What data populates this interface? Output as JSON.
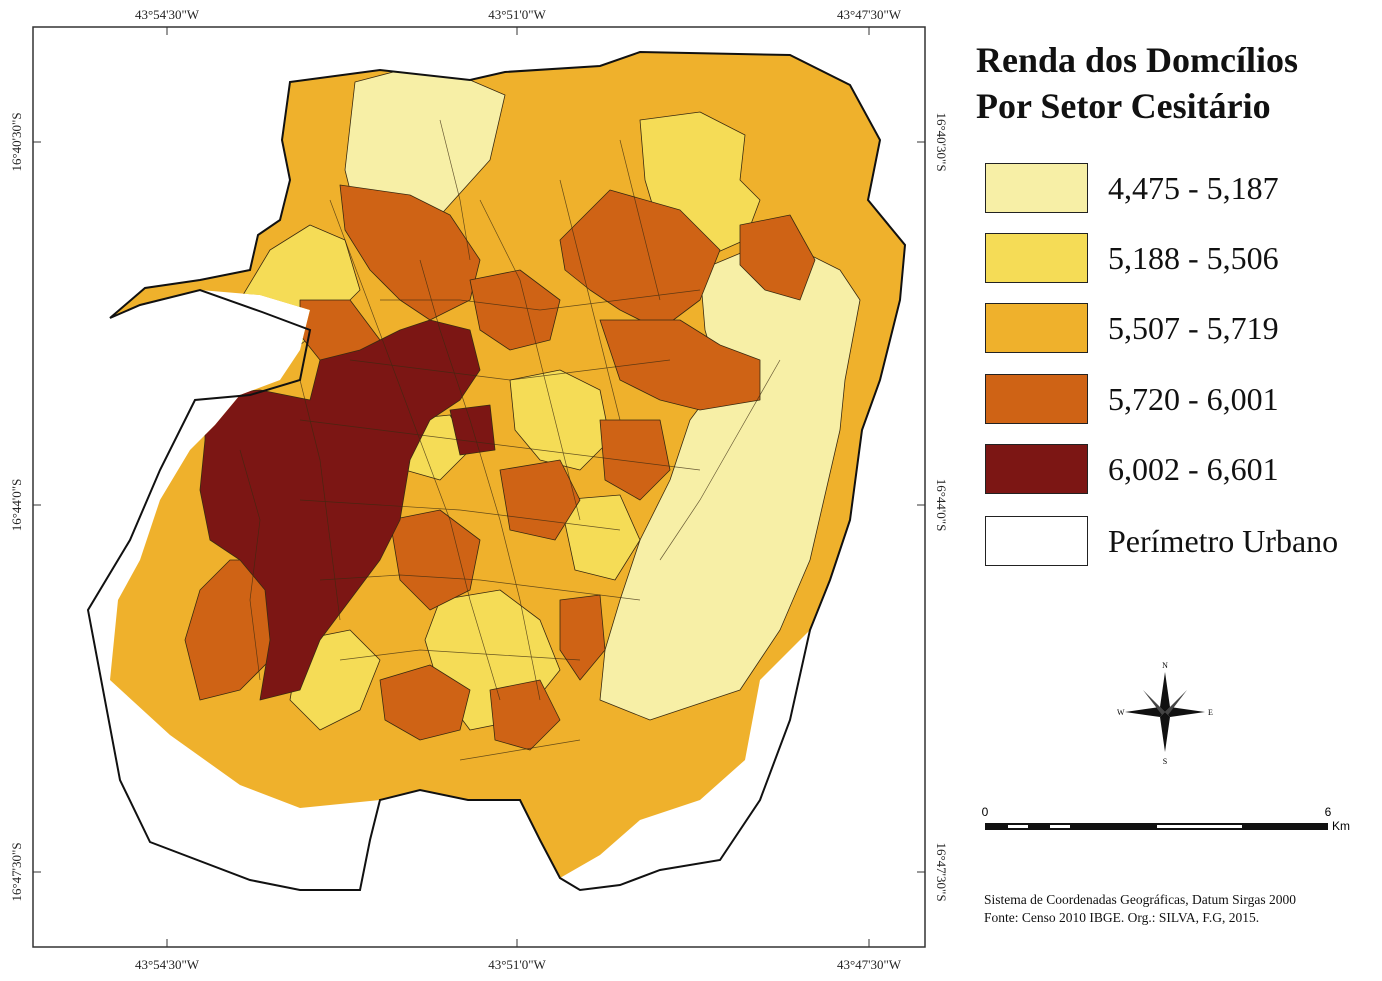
{
  "map": {
    "top_coordinates": [
      "43°54'30\"W",
      "43°51'0\"W",
      "43°47'30\"W"
    ],
    "bottom_coordinates": [
      "43°54'30\"W",
      "43°51'0\"W",
      "43°47'30\"W"
    ],
    "left_coordinates": [
      "16°40'30\"S",
      "16°44'0\"S",
      "16°47'30\"S"
    ],
    "right_coordinates": [
      "16°40'30\"S",
      "16°44'0\"S",
      "16°47'30\"S"
    ]
  },
  "legend": {
    "title_line1": "Renda dos Domcílios",
    "title_line2": "Por Setor Cesitário",
    "items": [
      {
        "label": "4,475 - 5,187",
        "color": "#f7efa6"
      },
      {
        "label": "5,188 - 5,506",
        "color": "#f5dc56"
      },
      {
        "label": "5,507 - 5,719",
        "color": "#efb12c"
      },
      {
        "label": "5,720 - 6,001",
        "color": "#cf6315"
      },
      {
        "label": "6,002 - 6,601",
        "color": "#7c1614"
      },
      {
        "label": "Perímetro Urbano",
        "color": "#ffffff"
      }
    ]
  },
  "compass": {
    "n": "N",
    "s": "S",
    "e": "E",
    "w": "W"
  },
  "scale": {
    "start": "0",
    "end": "6",
    "unit": "Km"
  },
  "credits": {
    "line1": "Sistema de Coordenadas Geográficas, Datum Sirgas 2000",
    "line2": "Fonte: Censo 2010 IBGE. Org.: SILVA, F.G, 2015."
  }
}
